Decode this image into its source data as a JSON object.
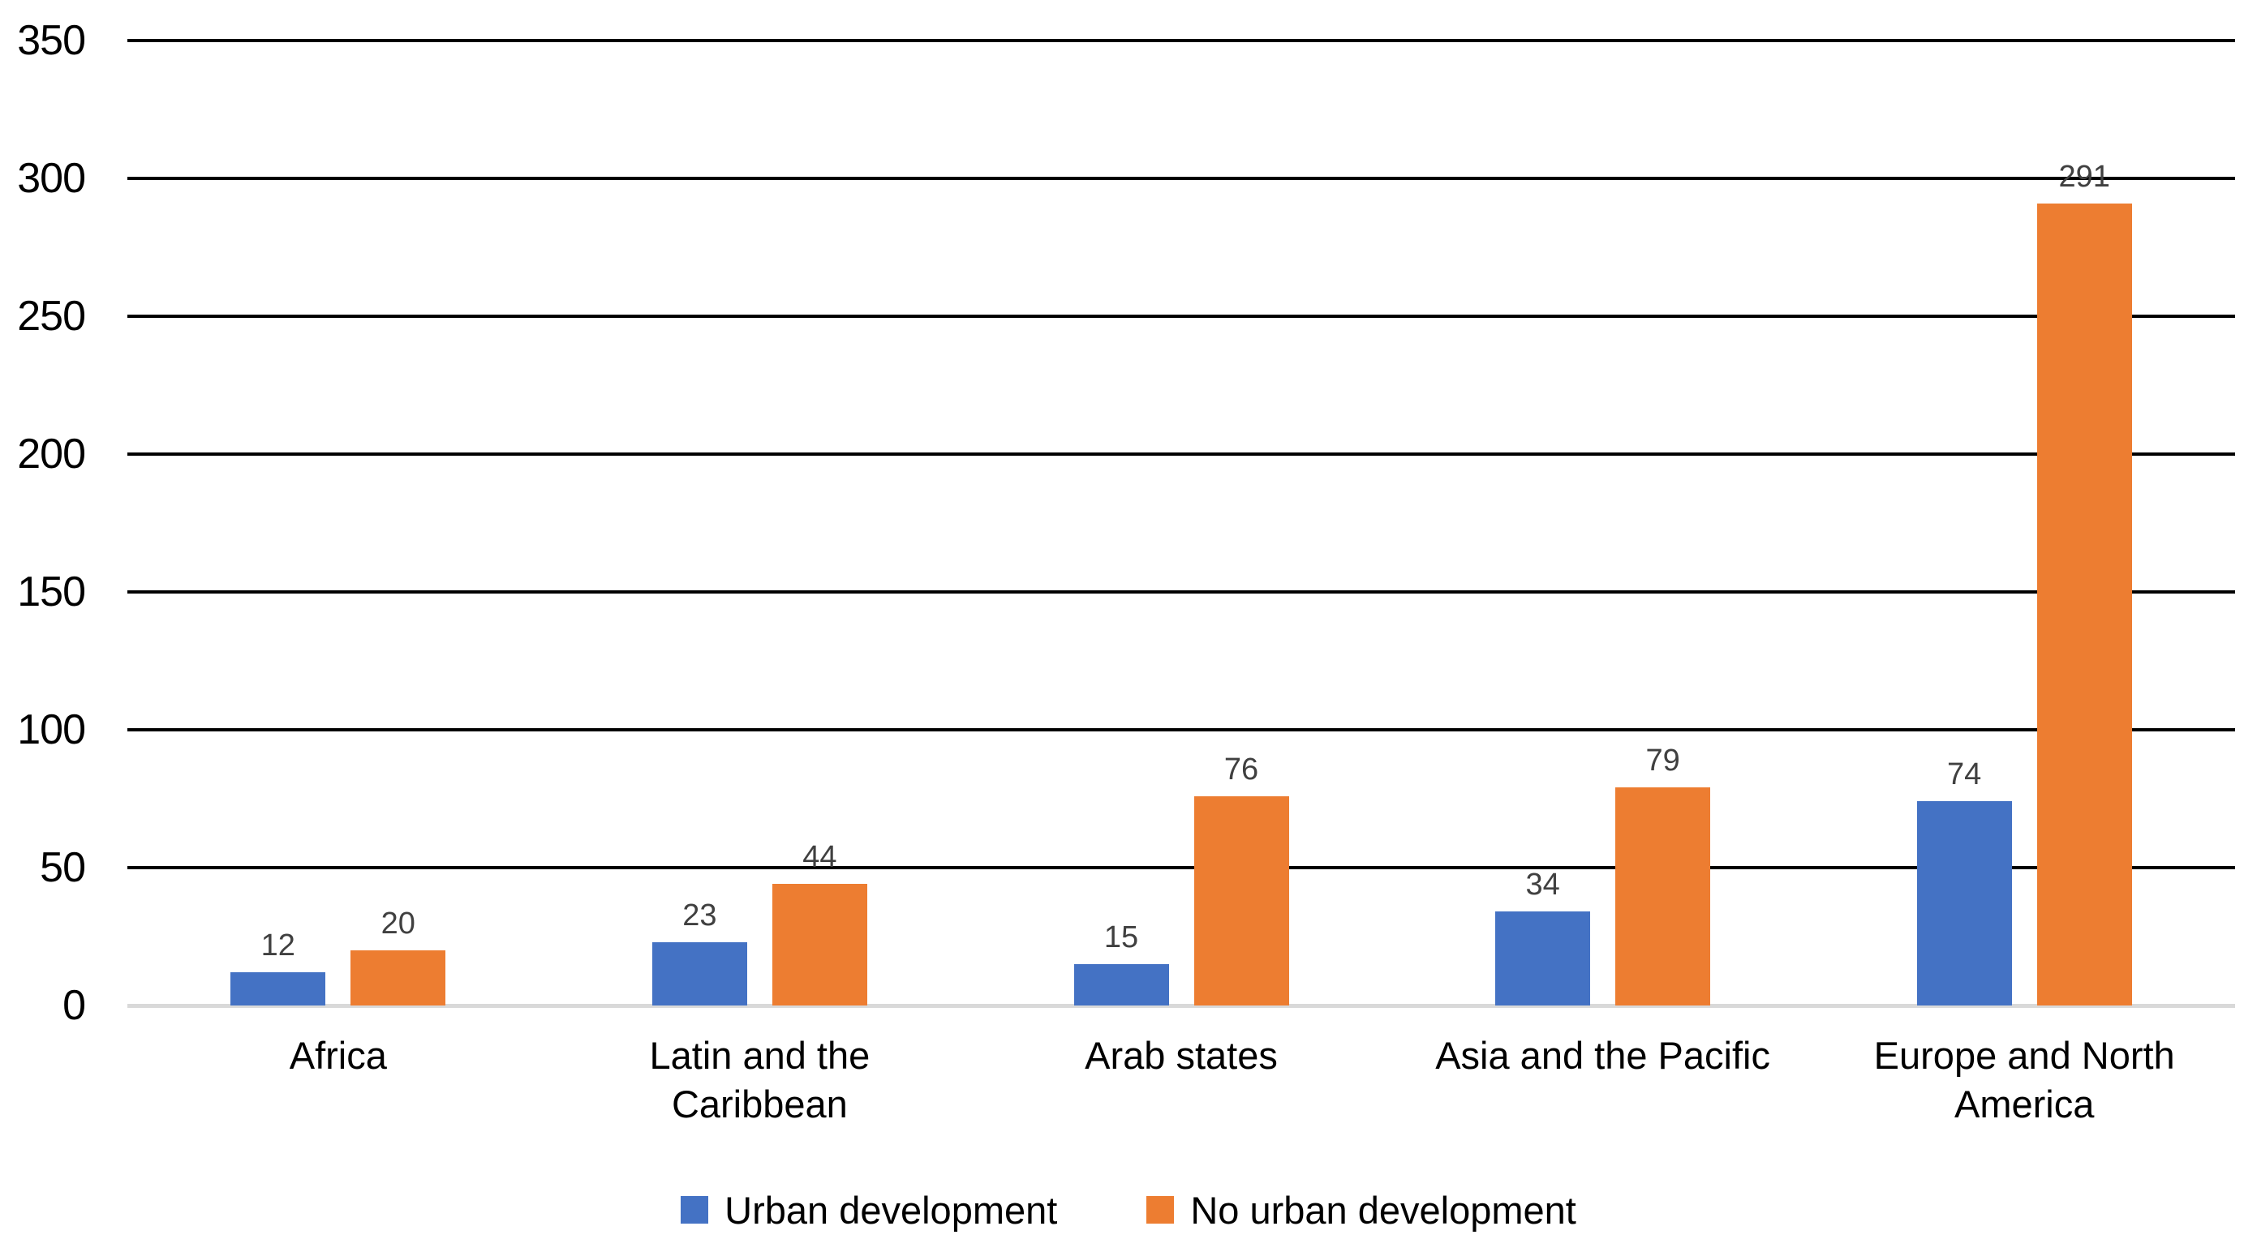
{
  "chart_data": {
    "type": "bar",
    "title": "",
    "xlabel": "",
    "ylabel": "",
    "categories": [
      {
        "name": "Africa",
        "lines": [
          "Africa"
        ]
      },
      {
        "name": "Latin and the Caribbean",
        "lines": [
          "Latin and the",
          "Caribbean"
        ]
      },
      {
        "name": "Arab states",
        "lines": [
          "Arab states"
        ]
      },
      {
        "name": "Asia and the Pacific",
        "lines": [
          "Asia and the Pacific"
        ]
      },
      {
        "name": "Europe and North America",
        "lines": [
          "Europe and North",
          "America"
        ]
      }
    ],
    "series": [
      {
        "name": "Urban development",
        "color": "#4472C4",
        "values": [
          12,
          23,
          15,
          34,
          74
        ]
      },
      {
        "name": "No urban development",
        "color": "#ED7D31",
        "values": [
          20,
          44,
          76,
          79,
          291
        ]
      }
    ],
    "ylim": [
      0,
      350
    ],
    "yticks": [
      0,
      50,
      100,
      150,
      200,
      250,
      300,
      350
    ],
    "grid": true,
    "data_labels": true,
    "legend_position": "bottom"
  },
  "colors": {
    "gridline": "#000000",
    "axis_baseline": "#d9d9d9",
    "data_label": "#404040",
    "text": "#000000",
    "background": "#ffffff"
  }
}
